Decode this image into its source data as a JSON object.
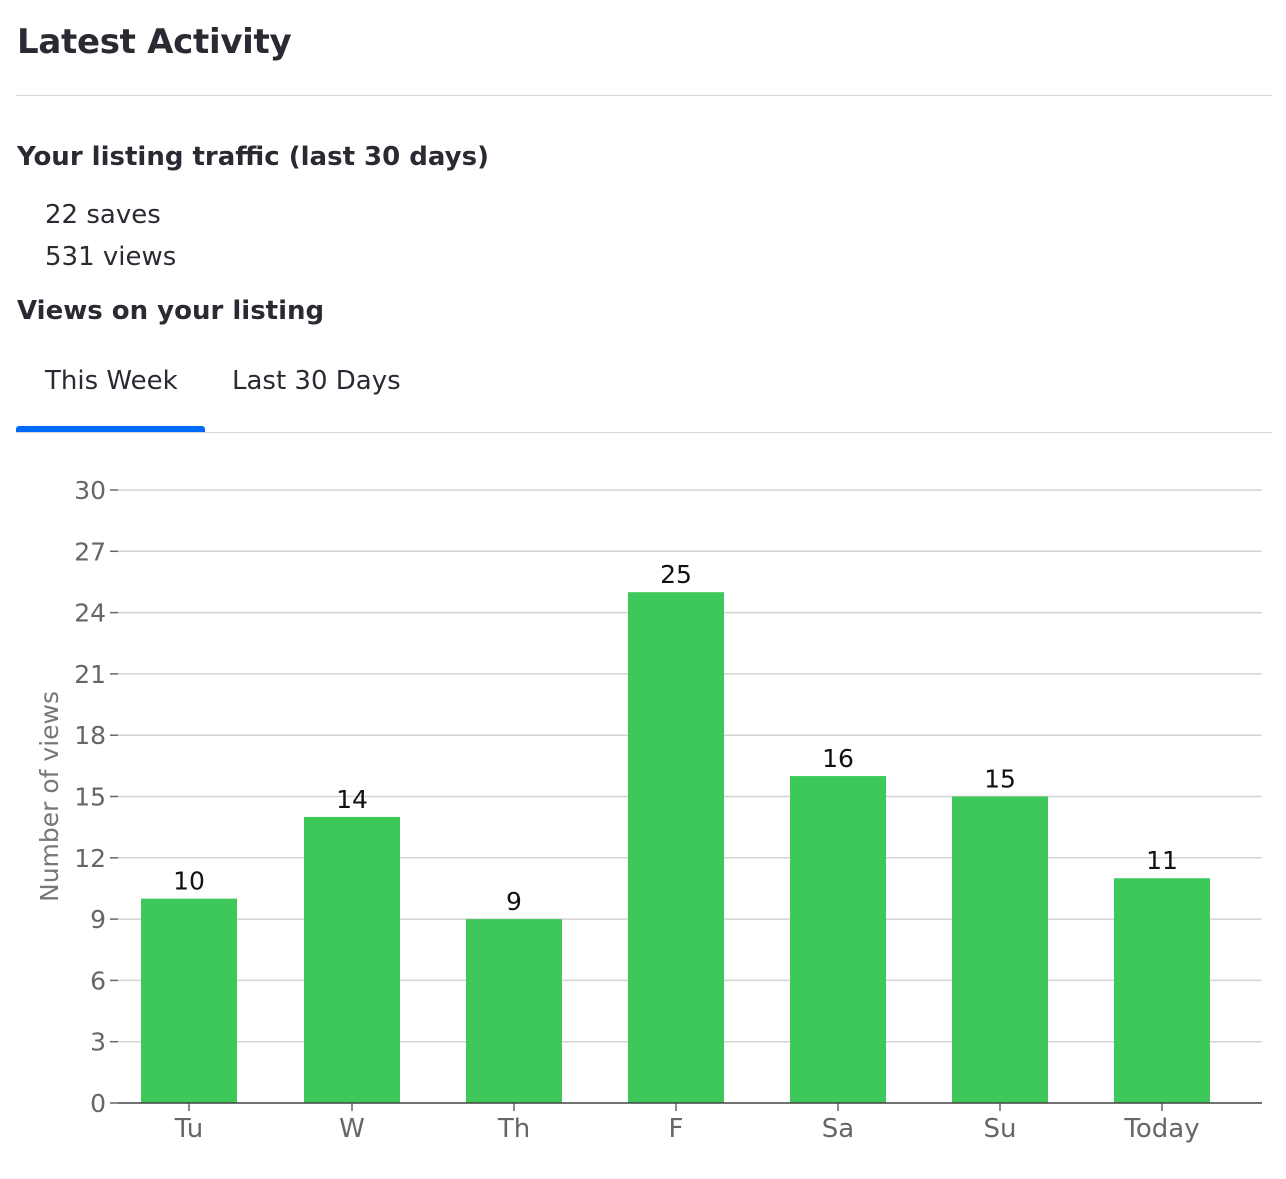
{
  "header": {
    "title": "Latest Activity"
  },
  "traffic": {
    "heading": "Your listing traffic (last 30 days)",
    "saves": "22 saves",
    "views": "531 views"
  },
  "views_section": {
    "heading": "Views on your listing",
    "tabs": [
      {
        "label": "This Week",
        "active": true
      },
      {
        "label": "Last 30 Days",
        "active": false
      }
    ]
  },
  "colors": {
    "accent": "#006aff",
    "bar": "#3ec85a",
    "grid": "#d3d3d3",
    "axis_text": "#666666"
  },
  "chart_data": {
    "type": "bar",
    "categories": [
      "Tu",
      "W",
      "Th",
      "F",
      "Sa",
      "Su",
      "Today"
    ],
    "values": [
      10,
      14,
      9,
      25,
      16,
      15,
      11
    ],
    "ylabel": "Number of views",
    "ylim": [
      0,
      30
    ],
    "yticks": [
      0,
      3,
      6,
      9,
      12,
      15,
      18,
      21,
      24,
      27,
      30
    ],
    "grid": true,
    "data_labels": true
  }
}
